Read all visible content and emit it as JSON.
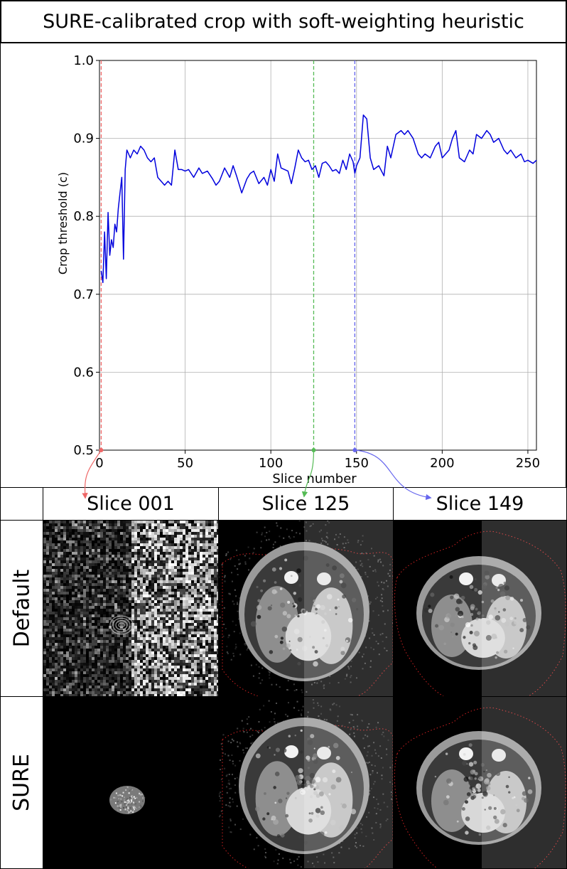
{
  "title": "SURE-calibrated crop with soft-weighting heuristic",
  "chart_data": {
    "type": "line",
    "xlabel": "Slice number",
    "ylabel": "Crop threshold (c)",
    "xlim": [
      0,
      255
    ],
    "ylim": [
      0.5,
      1.0
    ],
    "xticks": [
      0,
      50,
      100,
      150,
      200,
      250
    ],
    "yticks": [
      0.5,
      0.6,
      0.7,
      0.8,
      0.9,
      1.0
    ],
    "grid": true,
    "series": [
      {
        "color": "#0000dd",
        "x": [
          1,
          2,
          3,
          4,
          5,
          6,
          7,
          8,
          9,
          10,
          11,
          12,
          13,
          14,
          15,
          16,
          17,
          18,
          20,
          22,
          24,
          26,
          28,
          30,
          32,
          34,
          36,
          38,
          40,
          42,
          44,
          46,
          48,
          50,
          52,
          55,
          58,
          60,
          63,
          66,
          68,
          70,
          73,
          76,
          78,
          80,
          83,
          86,
          88,
          90,
          93,
          96,
          98,
          100,
          102,
          104,
          106,
          108,
          110,
          112,
          114,
          116,
          118,
          120,
          122,
          124,
          126,
          128,
          130,
          132,
          134,
          136,
          138,
          140,
          142,
          144,
          146,
          148,
          149,
          150,
          152,
          154,
          156,
          158,
          160,
          163,
          166,
          168,
          170,
          173,
          176,
          178,
          180,
          183,
          186,
          188,
          190,
          193,
          196,
          198,
          200,
          202,
          204,
          206,
          208,
          210,
          213,
          216,
          218,
          220,
          223,
          226,
          228,
          230,
          233,
          236,
          238,
          240,
          243,
          246,
          248,
          250,
          253,
          255
        ],
        "y": [
          0.73,
          0.715,
          0.78,
          0.72,
          0.805,
          0.75,
          0.77,
          0.76,
          0.79,
          0.78,
          0.81,
          0.83,
          0.85,
          0.745,
          0.86,
          0.885,
          0.88,
          0.875,
          0.885,
          0.88,
          0.89,
          0.885,
          0.875,
          0.87,
          0.875,
          0.85,
          0.845,
          0.84,
          0.845,
          0.84,
          0.885,
          0.86,
          0.86,
          0.858,
          0.86,
          0.85,
          0.862,
          0.855,
          0.858,
          0.848,
          0.84,
          0.845,
          0.862,
          0.85,
          0.865,
          0.852,
          0.83,
          0.848,
          0.855,
          0.858,
          0.842,
          0.85,
          0.84,
          0.86,
          0.845,
          0.88,
          0.862,
          0.86,
          0.858,
          0.842,
          0.862,
          0.885,
          0.875,
          0.87,
          0.872,
          0.86,
          0.865,
          0.85,
          0.868,
          0.87,
          0.865,
          0.858,
          0.86,
          0.855,
          0.872,
          0.86,
          0.88,
          0.87,
          0.855,
          0.865,
          0.875,
          0.93,
          0.925,
          0.875,
          0.86,
          0.865,
          0.852,
          0.89,
          0.875,
          0.905,
          0.91,
          0.905,
          0.91,
          0.9,
          0.88,
          0.875,
          0.88,
          0.875,
          0.89,
          0.895,
          0.875,
          0.88,
          0.885,
          0.9,
          0.91,
          0.875,
          0.87,
          0.885,
          0.88,
          0.905,
          0.9,
          0.91,
          0.905,
          0.895,
          0.9,
          0.885,
          0.88,
          0.885,
          0.875,
          0.88,
          0.87,
          0.872,
          0.868,
          0.872
        ]
      }
    ],
    "markers": [
      {
        "x": 1,
        "color": "#ee6666"
      },
      {
        "x": 125,
        "color": "#55bb55"
      },
      {
        "x": 149,
        "color": "#6666ee"
      }
    ]
  },
  "columns": [
    "Slice 001",
    "Slice 125",
    "Slice 149"
  ],
  "rows": [
    "Default",
    "SURE"
  ]
}
